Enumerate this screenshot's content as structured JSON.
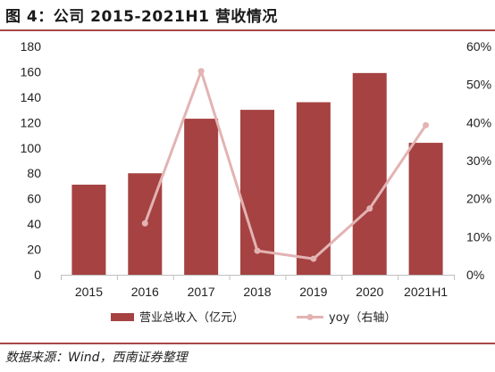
{
  "figure": {
    "title": "图 4：公司 2015-2021H1 营收情况",
    "source": "数据来源：Wind，西南证券整理"
  },
  "colors": {
    "bar": "#a64242",
    "line": "#e3b3b3",
    "rule": "#a94646",
    "axis": "#bfbfbf"
  },
  "chart_data": {
    "type": "bar",
    "categories": [
      "2015",
      "2016",
      "2017",
      "2018",
      "2019",
      "2020",
      "2021H1"
    ],
    "series": [
      {
        "name": "营业总收入（亿元）",
        "type": "bar",
        "axis": "left",
        "values": [
          71,
          80,
          123,
          130,
          136,
          159,
          104
        ]
      },
      {
        "name": "yoy（右轴）",
        "type": "line",
        "axis": "right",
        "values": [
          null,
          13.5,
          53.5,
          6.3,
          4.2,
          17.4,
          39.3
        ]
      }
    ],
    "ylim_left": [
      0,
      180
    ],
    "yticks_left": [
      "0",
      "20",
      "40",
      "60",
      "80",
      "100",
      "120",
      "140",
      "160",
      "180"
    ],
    "ylim_right": [
      0,
      60
    ],
    "yticks_right": [
      "0%",
      "10%",
      "20%",
      "30%",
      "40%",
      "50%",
      "60%"
    ],
    "legend": "bottom",
    "grid": false
  }
}
